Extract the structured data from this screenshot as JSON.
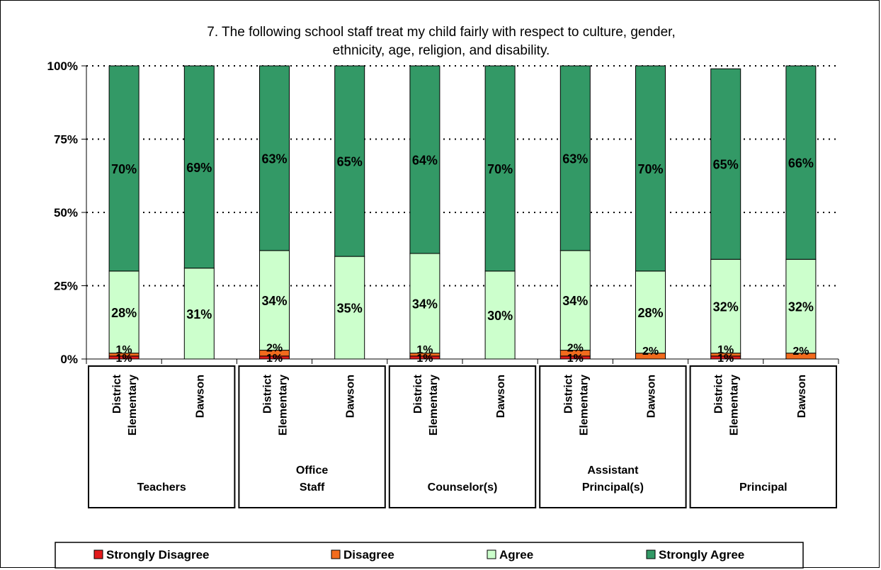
{
  "chart_data": {
    "type": "bar",
    "stacked": true,
    "percent": true,
    "title_lines": [
      "7.  The following school staff treat my child fairly with respect to culture, gender,",
      "ethnicity, age, religion, and disability."
    ],
    "y_ticks": [
      "0%",
      "25%",
      "50%",
      "75%",
      "100%"
    ],
    "ylim": [
      0,
      100
    ],
    "grid": "dotted",
    "legend_position": "bottom",
    "groups": [
      {
        "label_lines": [
          "Teachers"
        ],
        "categories": [
          {
            "label_lines": [
              "District",
              "Elementary"
            ],
            "values": [
              1,
              1,
              28,
              70
            ],
            "labels": [
              "1%",
              "1%",
              "28%",
              "70%"
            ]
          },
          {
            "label_lines": [
              "Dawson"
            ],
            "values": [
              0,
              0,
              31,
              69
            ],
            "labels": [
              "",
              "",
              "31%",
              "69%"
            ]
          }
        ]
      },
      {
        "label_lines": [
          "Office",
          "Staff"
        ],
        "categories": [
          {
            "label_lines": [
              "District",
              "Elementary"
            ],
            "values": [
              1,
              2,
              34,
              63
            ],
            "labels": [
              "1%",
              "2%",
              "34%",
              "63%"
            ]
          },
          {
            "label_lines": [
              "Dawson"
            ],
            "values": [
              0,
              0,
              35,
              65
            ],
            "labels": [
              "",
              "",
              "35%",
              "65%"
            ]
          }
        ]
      },
      {
        "label_lines": [
          "Counselor(s)"
        ],
        "categories": [
          {
            "label_lines": [
              "District",
              "Elementary"
            ],
            "values": [
              1,
              1,
              34,
              64
            ],
            "labels": [
              "1%",
              "1%",
              "34%",
              "64%"
            ]
          },
          {
            "label_lines": [
              "Dawson"
            ],
            "values": [
              0,
              0,
              30,
              70
            ],
            "labels": [
              "",
              "",
              "30%",
              "70%"
            ]
          }
        ]
      },
      {
        "label_lines": [
          "Assistant",
          "Principal(s)"
        ],
        "categories": [
          {
            "label_lines": [
              "District",
              "Elementary"
            ],
            "values": [
              1,
              2,
              34,
              63
            ],
            "labels": [
              "1%",
              "2%",
              "34%",
              "63%"
            ]
          },
          {
            "label_lines": [
              "Dawson"
            ],
            "values": [
              0,
              2,
              28,
              70
            ],
            "labels": [
              "",
              "2%",
              "28%",
              "70%"
            ]
          }
        ]
      },
      {
        "label_lines": [
          "Principal"
        ],
        "categories": [
          {
            "label_lines": [
              "District",
              "Elementary"
            ],
            "values": [
              1,
              1,
              32,
              65
            ],
            "labels": [
              "1%",
              "1%",
              "32%",
              "65%"
            ]
          },
          {
            "label_lines": [
              "Dawson"
            ],
            "values": [
              0,
              2,
              32,
              66
            ],
            "labels": [
              "",
              "2%",
              "32%",
              "66%"
            ]
          }
        ]
      }
    ],
    "series": [
      {
        "name": "Strongly Disagree",
        "color": "#e31a1c"
      },
      {
        "name": "Disagree",
        "color": "#f26b1d"
      },
      {
        "name": "Agree",
        "color": "#ccffcc"
      },
      {
        "name": "Strongly Agree",
        "color": "#339966"
      }
    ]
  }
}
